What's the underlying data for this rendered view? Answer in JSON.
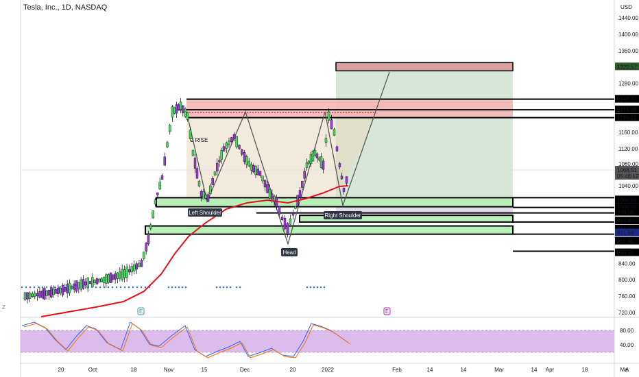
{
  "header": {
    "title": "Tesla, Inc., 1D, NASDAQ",
    "currency": "USD"
  },
  "colors": {
    "up": "#4cd964",
    "down": "#9b3bd6",
    "ma": "#e5101c",
    "stoch_k": "#2962ff",
    "stoch_d": "#ff6d00",
    "resistance_fill": "#f4b6b6",
    "support_fill": "#b9f0b9",
    "target_fill": "#c8dcc8",
    "pattern_fill": "#e8d9c0",
    "label_current": "#2f3542"
  },
  "axis": {
    "y_ticks": [
      "1440.00",
      "1400.00",
      "1360.00",
      "1320.57",
      "1280.00",
      "1241.27",
      "1215.38",
      "1196.21",
      "1160.00",
      "1120.00",
      "1080.00",
      "1068.51",
      "05:46:12",
      "1040.00",
      "1000.61",
      "1000.61",
      "978.56",
      "957.47",
      "941.17",
      "931.58",
      "911.45",
      "886.52",
      "840.00",
      "800.00",
      "760.00",
      "720.00"
    ],
    "x_ticks": [
      "20",
      "Oct",
      "18",
      "Nov",
      "15",
      "Dec",
      "20",
      "2022",
      "14",
      "Feb",
      "14",
      "Mar",
      "14",
      "Apr",
      "18",
      "Ma"
    ],
    "stoch_ticks": [
      "80.00",
      "40.00"
    ],
    "scale_mode": "A"
  },
  "annotations": {
    "left_shoulder": "Left Shoulder",
    "head": "Head",
    "right_shoulder": "Right Shoulder",
    "event_e": "E",
    "z_label": "Z",
    "note": "2 RISE"
  },
  "chart_data": {
    "type": "candlestick",
    "title": "Tesla, Inc., 1D, NASDAQ",
    "ylabel": "USD",
    "ylim": [
      700,
      1460
    ],
    "levels": [
      1320.57,
      1241.27,
      1215.38,
      1196.21,
      1000.61,
      1000.61,
      978.56,
      957.47,
      941.17,
      931.58,
      911.45,
      886.52
    ],
    "current_price": 1068.51,
    "pattern": "head and shoulders"
  }
}
